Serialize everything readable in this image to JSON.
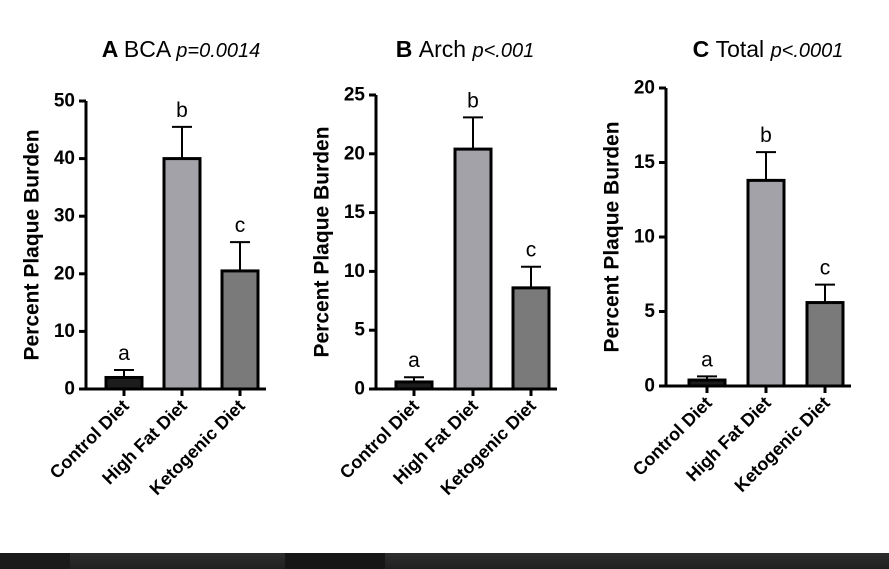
{
  "chart_data": [
    {
      "type": "bar",
      "panel": "A",
      "title": "BCA",
      "pvalue": "p=0.0014",
      "ylabel": "Percent Plaque Burden",
      "categories": [
        "Control Diet",
        "High Fat Diet",
        "Ketogenic Diet"
      ],
      "values": [
        2,
        40,
        20.5
      ],
      "errors": [
        1.3,
        5.5,
        5
      ],
      "letters": [
        "a",
        "b",
        "c"
      ],
      "bar_colors": [
        "#1c1c1c",
        "#a2a2a8",
        "#7a7a7a"
      ],
      "ylim": [
        0,
        50
      ],
      "yticks": [
        0,
        10,
        20,
        30,
        40,
        50
      ]
    },
    {
      "type": "bar",
      "panel": "B",
      "title": "Arch",
      "pvalue": "p<.001",
      "ylabel": "Percent Plaque Burden",
      "categories": [
        "Control Diet",
        "High Fat Diet",
        "Ketogenic Diet"
      ],
      "values": [
        0.6,
        20.4,
        8.6
      ],
      "errors": [
        0.4,
        2.7,
        1.8
      ],
      "letters": [
        "a",
        "b",
        "c"
      ],
      "bar_colors": [
        "#1c1c1c",
        "#a2a2a8",
        "#7a7a7a"
      ],
      "ylim": [
        0,
        25
      ],
      "yticks": [
        0,
        5,
        10,
        15,
        20,
        25
      ]
    },
    {
      "type": "bar",
      "panel": "C",
      "title": "Total",
      "pvalue": "p<.0001",
      "ylabel": "Percent Plaque Burden",
      "categories": [
        "Control Diet",
        "High Fat Diet",
        "Ketogenic Diet"
      ],
      "values": [
        0.4,
        13.8,
        5.6
      ],
      "errors": [
        0.25,
        1.9,
        1.2
      ],
      "letters": [
        "a",
        "b",
        "c"
      ],
      "bar_colors": [
        "#1c1c1c",
        "#a2a2a8",
        "#7a7a7a"
      ],
      "ylim": [
        0,
        20
      ],
      "yticks": [
        0,
        5,
        10,
        15,
        20
      ]
    }
  ]
}
